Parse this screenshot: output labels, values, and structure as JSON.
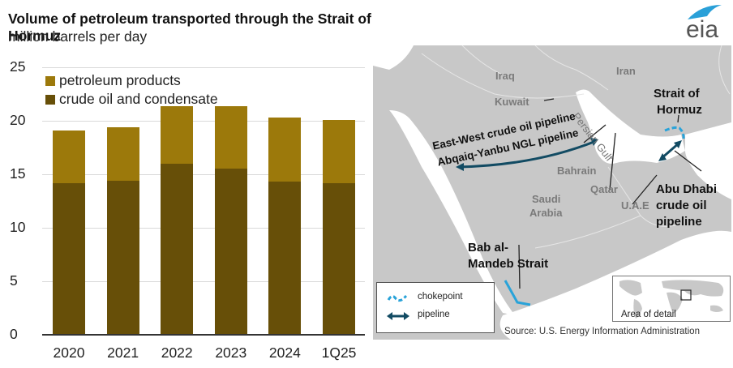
{
  "header": {
    "title": "Volume of petroleum transported through the Strait of Hormuz",
    "subtitle": "million barrels per day",
    "logo_text": "eia"
  },
  "colors": {
    "petroleum_products": "#9c790b",
    "crude_oil": "#674f08",
    "chokepoint": "#29a3d9",
    "pipeline": "#124b63",
    "map_land": "#c8c8c8",
    "map_water": "#ffffff"
  },
  "chart_data": {
    "type": "bar",
    "stacked": true,
    "title": "Volume of petroleum transported through the Strait of Hormuz",
    "subtitle": "million barrels per day",
    "xlabel": "",
    "ylabel": "million barrels per day",
    "categories": [
      "2020",
      "2021",
      "2022",
      "2023",
      "2024",
      "1Q25"
    ],
    "series": [
      {
        "name": "crude oil and condensate",
        "values": [
          14.2,
          14.4,
          16.0,
          15.5,
          14.3,
          14.2
        ]
      },
      {
        "name": "petroleum products",
        "values": [
          4.9,
          5.0,
          5.4,
          5.9,
          6.0,
          5.9
        ]
      }
    ],
    "totals": [
      19.1,
      19.4,
      21.4,
      21.4,
      20.3,
      20.1
    ],
    "ylim": [
      0,
      25
    ],
    "yticks": [
      0,
      5,
      10,
      15,
      20,
      25
    ],
    "grid": true,
    "legend_position": "top-left, inside plot",
    "legend": [
      "petroleum products",
      "crude oil and condensate"
    ]
  },
  "yticks": [
    "25",
    "20",
    "15",
    "10",
    "5",
    "0"
  ],
  "legend": {
    "products": "petroleum products",
    "crude": "crude oil and condensate"
  },
  "map": {
    "countries": {
      "iraq": "Iraq",
      "iran": "Iran",
      "kuwait": "Kuwait",
      "bahrain": "Bahrain",
      "qatar": "Qatar",
      "uae": "U.A.E",
      "saudi1": "Saudi",
      "saudi2": "Arabia"
    },
    "water": "Persian Gulf",
    "labels": {
      "hormuz1": "Strait of",
      "hormuz2": "Hormuz",
      "eastwest": "East-West crude oil pipeline",
      "abqaiq": "Abqaiq-Yanbu NGL pipeline",
      "abudhabi1": "Abu Dhabi",
      "abudhabi2": "crude oil",
      "abudhabi3": "pipeline",
      "bab1": "Bab al-",
      "bab2": "Mandeb Strait"
    },
    "legend": {
      "chokepoint": "chokepoint",
      "pipeline": "pipeline"
    },
    "inset_label": "Area of detail",
    "source": "Source: U.S. Energy Information Administration"
  }
}
